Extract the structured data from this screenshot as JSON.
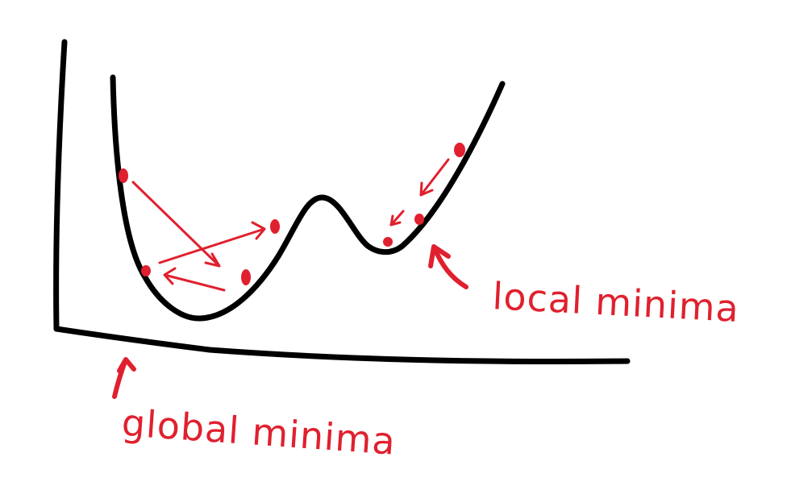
{
  "colors": {
    "curve": "#000000",
    "annotation": "#e0202e",
    "background": "#ffffff"
  },
  "annotations": {
    "local": "local minima",
    "global": "global minima"
  }
}
